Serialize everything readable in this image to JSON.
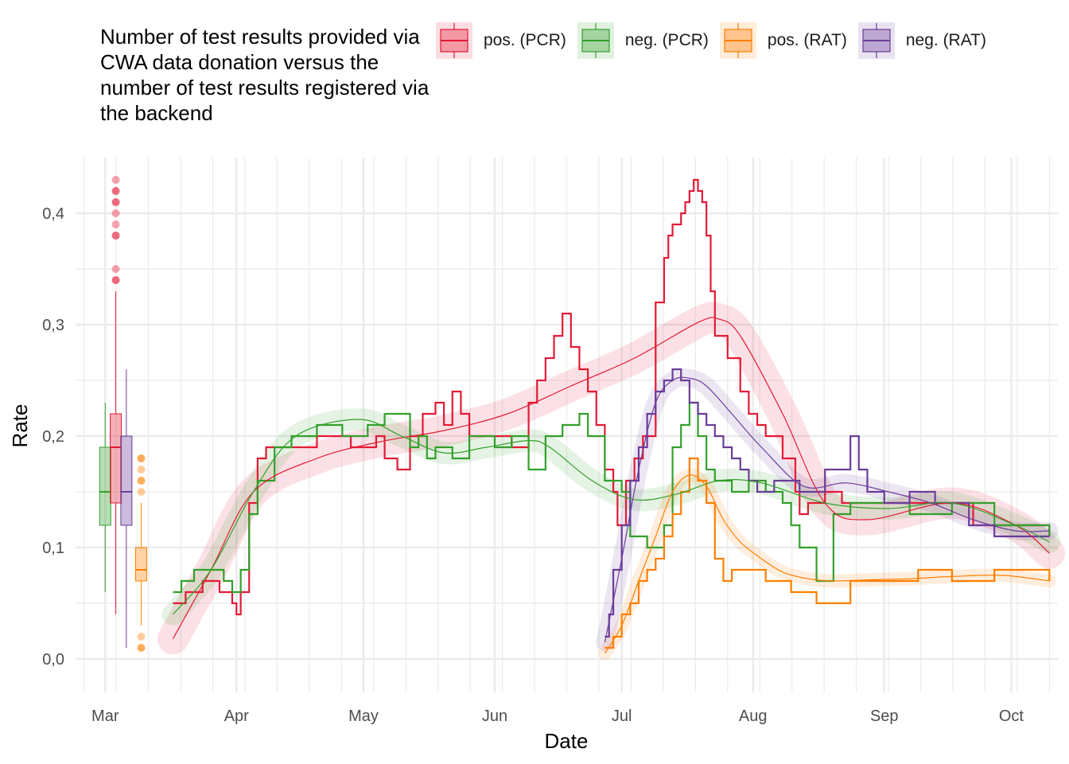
{
  "title": "Number of test results provided via CWA data donation versus the number of test results registered via the backend",
  "colors": {
    "pos_pcr": "#E31A35",
    "neg_pcr": "#33A02C",
    "pos_rat": "#FF7F00",
    "neg_rat": "#6A3D9A",
    "grid": "#EBEBEB"
  },
  "legend": [
    {
      "key": "pos_pcr",
      "label": "pos. (PCR)"
    },
    {
      "key": "neg_pcr",
      "label": "neg. (PCR)"
    },
    {
      "key": "pos_rat",
      "label": "pos. (RAT)"
    },
    {
      "key": "neg_rat",
      "label": "neg. (RAT)"
    }
  ],
  "chart_data": {
    "type": "line",
    "xlabel": "Date",
    "ylabel": "Rate",
    "ylim": [
      -0.03,
      0.45
    ],
    "x_ticks": [
      "Mar",
      "Apr",
      "May",
      "Jun",
      "Jul",
      "Aug",
      "Sep",
      "Oct"
    ],
    "x_tick_days": [
      0,
      31,
      61,
      92,
      122,
      153,
      184,
      214
    ],
    "xlim_days": [
      -7,
      225
    ],
    "y_ticks": [
      0.0,
      0.1,
      0.2,
      0.3,
      0.4
    ],
    "y_tick_labels": [
      "0,0",
      "0,1",
      "0,2",
      "0,3",
      "0,4"
    ],
    "grid": true,
    "legend_position": "top",
    "boxplots": [
      {
        "series": "neg_pcr",
        "q1": 0.12,
        "median": 0.15,
        "q3": 0.19,
        "whisker_low": 0.06,
        "whisker_high": 0.23,
        "outliers": []
      },
      {
        "series": "pos_pcr",
        "q1": 0.14,
        "median": 0.19,
        "q3": 0.22,
        "whisker_low": 0.04,
        "whisker_high": 0.33,
        "outliers": [
          0.34,
          0.34,
          0.35,
          0.38,
          0.38,
          0.39,
          0.4,
          0.41,
          0.41,
          0.42,
          0.42,
          0.43
        ]
      },
      {
        "series": "neg_rat",
        "q1": 0.12,
        "median": 0.15,
        "q3": 0.2,
        "whisker_low": 0.01,
        "whisker_high": 0.26,
        "outliers": []
      },
      {
        "series": "pos_rat",
        "q1": 0.07,
        "median": 0.08,
        "q3": 0.1,
        "whisker_low": 0.03,
        "whisker_high": 0.14,
        "outliers": [
          0.15,
          0.16,
          0.16,
          0.17,
          0.18,
          0.18,
          0.02,
          0.01,
          0.01
        ]
      }
    ],
    "series": [
      {
        "key": "pos_pcr",
        "name": "pos. (PCR)",
        "x_days": [
          16,
          19,
          23,
          27,
          30,
          31,
          32,
          34,
          36,
          38,
          44,
          50,
          55,
          58,
          64,
          66,
          69,
          72,
          75,
          78,
          80,
          82,
          84,
          86,
          88,
          90,
          92,
          96,
          100,
          102,
          104,
          106,
          108,
          110,
          112,
          114,
          116,
          118,
          120,
          121,
          123,
          125,
          127,
          130,
          132,
          133,
          134,
          136,
          137,
          138,
          139,
          140,
          141,
          142,
          143,
          144,
          147,
          150,
          152,
          154,
          156,
          160,
          163,
          164,
          166,
          170,
          174,
          184,
          198,
          205,
          218,
          223
        ],
        "y": [
          0.05,
          0.06,
          0.07,
          0.06,
          0.05,
          0.04,
          0.06,
          0.14,
          0.18,
          0.19,
          0.19,
          0.2,
          0.2,
          0.19,
          0.2,
          0.18,
          0.17,
          0.2,
          0.22,
          0.23,
          0.21,
          0.24,
          0.22,
          0.2,
          0.2,
          0.2,
          0.2,
          0.19,
          0.23,
          0.25,
          0.27,
          0.29,
          0.31,
          0.28,
          0.26,
          0.24,
          0.21,
          0.17,
          0.15,
          0.12,
          0.16,
          0.18,
          0.2,
          0.32,
          0.36,
          0.38,
          0.39,
          0.4,
          0.41,
          0.42,
          0.43,
          0.42,
          0.41,
          0.38,
          0.33,
          0.29,
          0.27,
          0.24,
          0.22,
          0.21,
          0.2,
          0.18,
          0.15,
          0.13,
          0.14,
          0.15,
          0.14,
          0.14,
          0.14,
          0.12,
          0.12,
          0.11
        ],
        "smooth_x": [
          16,
          25,
          35,
          50,
          65,
          80,
          95,
          110,
          125,
          140,
          145,
          150,
          160,
          170,
          180,
          200,
          215,
          223
        ],
        "smooth_y": [
          0.018,
          0.08,
          0.15,
          0.18,
          0.195,
          0.205,
          0.22,
          0.245,
          0.27,
          0.302,
          0.305,
          0.29,
          0.22,
          0.14,
          0.125,
          0.14,
          0.12,
          0.095
        ]
      },
      {
        "key": "neg_pcr",
        "name": "neg. (PCR)",
        "x_days": [
          16,
          18,
          21,
          28,
          30,
          32,
          34,
          36,
          40,
          44,
          50,
          56,
          62,
          66,
          72,
          74,
          76,
          78,
          82,
          86,
          92,
          96,
          100,
          104,
          108,
          112,
          114,
          118,
          122,
          124,
          128,
          132,
          134,
          136,
          138,
          140,
          142,
          144,
          148,
          152,
          156,
          160,
          162,
          164,
          168,
          172,
          176,
          182,
          190,
          200,
          210,
          223
        ],
        "y": [
          0.06,
          0.07,
          0.08,
          0.07,
          0.06,
          0.08,
          0.13,
          0.16,
          0.19,
          0.2,
          0.21,
          0.2,
          0.21,
          0.22,
          0.19,
          0.2,
          0.18,
          0.19,
          0.18,
          0.2,
          0.19,
          0.2,
          0.17,
          0.2,
          0.21,
          0.22,
          0.2,
          0.16,
          0.15,
          0.11,
          0.1,
          0.12,
          0.19,
          0.21,
          0.23,
          0.2,
          0.17,
          0.16,
          0.15,
          0.16,
          0.15,
          0.14,
          0.12,
          0.1,
          0.07,
          0.13,
          0.14,
          0.14,
          0.13,
          0.14,
          0.12,
          0.11
        ],
        "smooth_x": [
          16,
          25,
          35,
          45,
          60,
          70,
          80,
          90,
          100,
          105,
          115,
          125,
          135,
          145,
          155,
          170,
          185,
          200,
          215,
          223
        ],
        "smooth_y": [
          0.04,
          0.08,
          0.15,
          0.2,
          0.215,
          0.2,
          0.185,
          0.19,
          0.196,
          0.19,
          0.16,
          0.143,
          0.148,
          0.16,
          0.158,
          0.14,
          0.135,
          0.14,
          0.12,
          0.105
        ]
      },
      {
        "key": "pos_rat",
        "name": "pos. (RAT)",
        "x_days": [
          118,
          120,
          122,
          124,
          126,
          128,
          130,
          132,
          134,
          136,
          138,
          140,
          142,
          144,
          146,
          148,
          150,
          156,
          162,
          168,
          176,
          182,
          192,
          200,
          210,
          223
        ],
        "y": [
          0.01,
          0.02,
          0.04,
          0.05,
          0.07,
          0.08,
          0.09,
          0.11,
          0.13,
          0.15,
          0.18,
          0.16,
          0.14,
          0.09,
          0.07,
          0.08,
          0.08,
          0.07,
          0.06,
          0.05,
          0.07,
          0.07,
          0.08,
          0.07,
          0.08,
          0.07
        ],
        "smooth_x": [
          118,
          122,
          126,
          130,
          134,
          138,
          142,
          146,
          150,
          155,
          160,
          166,
          172,
          180,
          190,
          200,
          212,
          223
        ],
        "smooth_y": [
          0.005,
          0.03,
          0.07,
          0.11,
          0.15,
          0.165,
          0.155,
          0.125,
          0.105,
          0.09,
          0.078,
          0.072,
          0.07,
          0.071,
          0.072,
          0.074,
          0.075,
          0.07
        ]
      },
      {
        "key": "neg_rat",
        "name": "neg. (RAT)",
        "x_days": [
          118,
          119,
          120,
          122,
          124,
          126,
          128,
          130,
          132,
          134,
          136,
          138,
          140,
          142,
          144,
          146,
          148,
          150,
          152,
          154,
          158,
          164,
          170,
          176,
          178,
          180,
          184,
          190,
          196,
          204,
          210,
          223
        ],
        "y": [
          0.02,
          0.04,
          0.08,
          0.12,
          0.16,
          0.19,
          0.22,
          0.24,
          0.25,
          0.26,
          0.25,
          0.23,
          0.22,
          0.21,
          0.2,
          0.19,
          0.18,
          0.17,
          0.16,
          0.15,
          0.16,
          0.15,
          0.17,
          0.2,
          0.17,
          0.15,
          0.14,
          0.15,
          0.14,
          0.12,
          0.11,
          0.11
        ],
        "smooth_x": [
          118,
          122,
          126,
          130,
          134,
          138,
          142,
          148,
          155,
          165,
          175,
          185,
          195,
          205,
          215,
          223
        ],
        "smooth_y": [
          0.015,
          0.09,
          0.17,
          0.23,
          0.25,
          0.252,
          0.245,
          0.22,
          0.19,
          0.155,
          0.158,
          0.15,
          0.14,
          0.125,
          0.115,
          0.115
        ]
      }
    ]
  }
}
